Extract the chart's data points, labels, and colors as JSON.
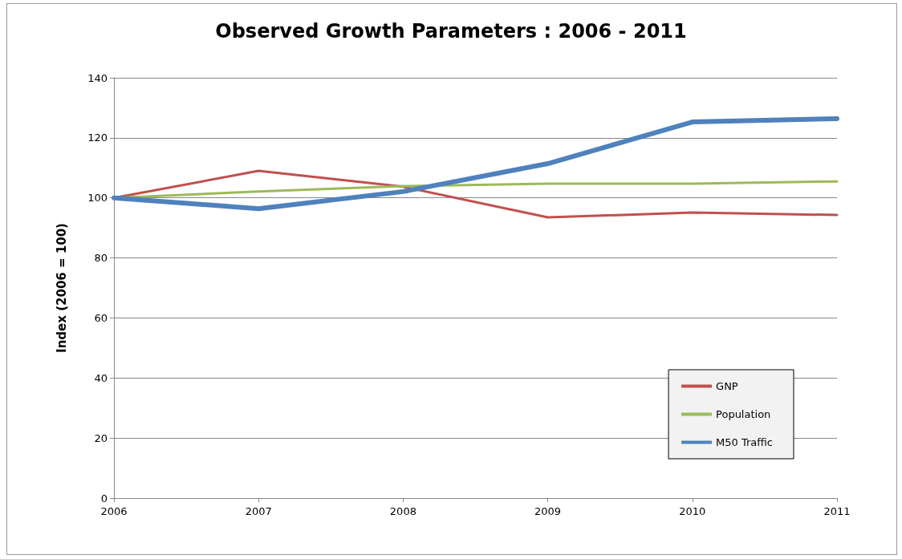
{
  "chart_data": {
    "type": "line",
    "title": "Observed Growth Parameters : 2006 - 2011",
    "ylabel": "Index (2006 = 100)",
    "x": [
      2006,
      2007,
      2008,
      2009,
      2010,
      2011
    ],
    "series": [
      {
        "name": "GNP",
        "color": "#c0504d",
        "values": [
          100,
          109,
          103.7,
          93.5,
          95.1,
          94.3
        ]
      },
      {
        "name": "Population",
        "color": "#9bbb59",
        "values": [
          100,
          102.1,
          103.9,
          104.7,
          104.7,
          105.5
        ]
      },
      {
        "name": "M50 Traffic",
        "color": "#4f81bd",
        "values": [
          100,
          96.4,
          102.1,
          111.4,
          125.3,
          126.4
        ]
      }
    ],
    "xlim": [
      2006,
      2011
    ],
    "xticks": [
      2006,
      2007,
      2008,
      2009,
      2010,
      2011
    ],
    "ylim": [
      0,
      140
    ],
    "yticks": [
      0,
      20,
      40,
      60,
      80,
      100,
      120,
      140
    ],
    "grid": "y",
    "legend": "bottom right",
    "marker": "none",
    "line_style": "solid"
  }
}
